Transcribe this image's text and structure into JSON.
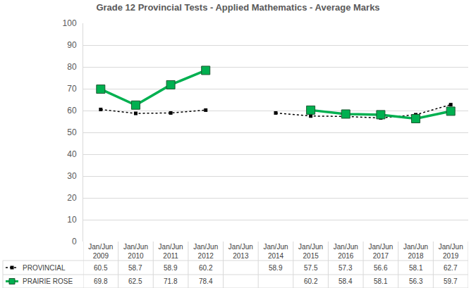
{
  "chart_data": {
    "type": "line",
    "title": "Grade 12 Provincial Tests - Applied Mathematics - Average Marks",
    "categories": [
      "Jan/Jun\n2009",
      "Jan/Jun\n2010",
      "Jan/Jun\n2011",
      "Jan/Jun\n2012",
      "Jan/Jun\n2013",
      "Jan/Jun\n2014",
      "Jan/Jun\n2015",
      "Jan/Jun\n2016",
      "Jan/Jun\n2017",
      "Jan/Jun\n2018",
      "Jan/Jun\n2019"
    ],
    "series": [
      {
        "name": "PROVINCIAL",
        "color": "#000000",
        "marker": "square",
        "line_style": "dotted",
        "values": [
          60.5,
          58.7,
          58.9,
          60.2,
          null,
          58.9,
          57.5,
          57.3,
          56.6,
          58.1,
          62.7
        ]
      },
      {
        "name": "PRAIRIE ROSE",
        "color": "#00b050",
        "marker": "square",
        "line_style": "solid",
        "values": [
          69.8,
          62.5,
          71.8,
          78.4,
          null,
          null,
          60.2,
          58.4,
          58.1,
          56.3,
          59.7
        ]
      }
    ],
    "ylim": [
      0,
      100
    ],
    "yticks": [
      0,
      10,
      20,
      30,
      40,
      50,
      60,
      70,
      80,
      90,
      100
    ],
    "grid": true,
    "data_labels": true
  }
}
